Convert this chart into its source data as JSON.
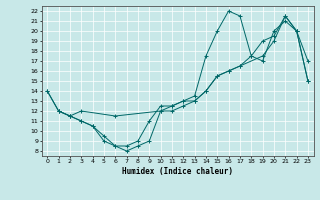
{
  "xlabel": "Humidex (Indice chaleur)",
  "bg_color": "#c8e8e8",
  "line_color": "#006868",
  "xlim": [
    -0.5,
    23.5
  ],
  "ylim": [
    7.5,
    22.5
  ],
  "xticks": [
    0,
    1,
    2,
    3,
    4,
    5,
    6,
    7,
    8,
    9,
    10,
    11,
    12,
    13,
    14,
    15,
    16,
    17,
    18,
    19,
    20,
    21,
    22,
    23
  ],
  "yticks": [
    8,
    9,
    10,
    11,
    12,
    13,
    14,
    15,
    16,
    17,
    18,
    19,
    20,
    21,
    22
  ],
  "line1_x": [
    0,
    1,
    2,
    3,
    4,
    5,
    6,
    7,
    8,
    9,
    10,
    11,
    12,
    13,
    14,
    15,
    16,
    17,
    18,
    19,
    20,
    21,
    22,
    23
  ],
  "line1_y": [
    14,
    12,
    11.5,
    11,
    10.5,
    9.5,
    8.5,
    8.5,
    9,
    11,
    12.5,
    12.5,
    13,
    13.5,
    17.5,
    20,
    22,
    21.5,
    17.5,
    17,
    20,
    21,
    20,
    17
  ],
  "line2_x": [
    0,
    1,
    2,
    3,
    4,
    5,
    6,
    7,
    8,
    9,
    10,
    11,
    12,
    13,
    14,
    15,
    16,
    17,
    18,
    19,
    20,
    21,
    22,
    23
  ],
  "line2_y": [
    14,
    12,
    11.5,
    11,
    10.5,
    9,
    8.5,
    8,
    8.5,
    9,
    12,
    12,
    12.5,
    13,
    14,
    15.5,
    16,
    16.5,
    17.5,
    19,
    19.5,
    21.5,
    20,
    15
  ],
  "line3_x": [
    1,
    2,
    3,
    6,
    10,
    11,
    12,
    13,
    14,
    15,
    16,
    17,
    19,
    20,
    21,
    22,
    23
  ],
  "line3_y": [
    12,
    11.5,
    12,
    11.5,
    12,
    12.5,
    13,
    13,
    14,
    15.5,
    16,
    16.5,
    17.5,
    19,
    21.5,
    20,
    15
  ]
}
